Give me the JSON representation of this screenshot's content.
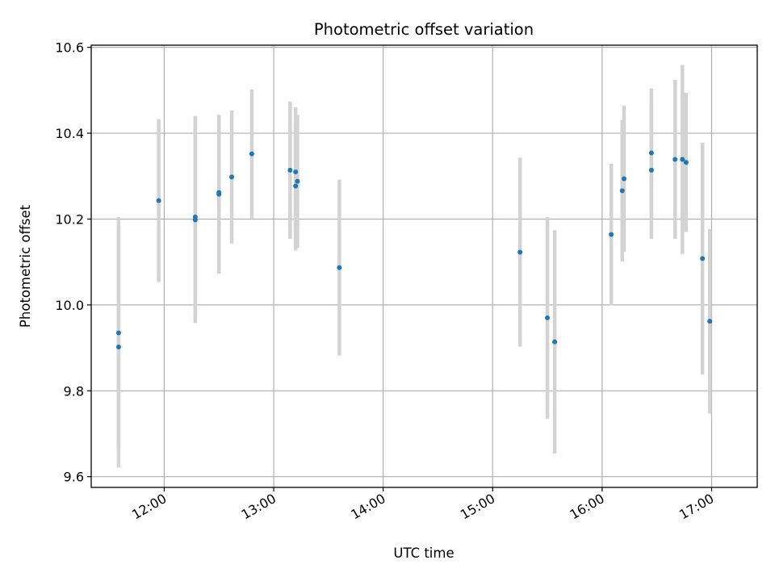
{
  "chart_data": {
    "type": "scatter",
    "title": "Photometric offset variation",
    "xlabel": "UTC time",
    "ylabel": "Photometric offset",
    "x_axis": "time",
    "xlim": [
      "11:20",
      "17:25"
    ],
    "ylim": [
      9.575,
      10.605
    ],
    "x_ticks": [
      "12:00",
      "13:00",
      "14:00",
      "15:00",
      "16:00",
      "17:00"
    ],
    "y_ticks": [
      "9.6",
      "9.8",
      "10.0",
      "10.2",
      "10.4",
      "10.6"
    ],
    "grid": true,
    "colors": {
      "point": "#1f77b4",
      "errorbar": "#d3d3d3",
      "grid": "#b0b0b0"
    },
    "points": [
      {
        "x": "11:35",
        "y": 9.935,
        "yerr": 0.27
      },
      {
        "x": "11:35",
        "y": 9.902,
        "yerr": 0.28
      },
      {
        "x": "11:57",
        "y": 10.243,
        "yerr": 0.19
      },
      {
        "x": "12:17",
        "y": 10.205,
        "yerr": 0.235
      },
      {
        "x": "12:17",
        "y": 10.198,
        "yerr": 0.24
      },
      {
        "x": "12:30",
        "y": 10.262,
        "yerr": 0.18
      },
      {
        "x": "12:30",
        "y": 10.258,
        "yerr": 0.185
      },
      {
        "x": "12:37",
        "y": 10.298,
        "yerr": 0.155
      },
      {
        "x": "12:48",
        "y": 10.352,
        "yerr": 0.15
      },
      {
        "x": "13:09",
        "y": 10.314,
        "yerr": 0.16
      },
      {
        "x": "13:12",
        "y": 10.31,
        "yerr": 0.15
      },
      {
        "x": "13:12",
        "y": 10.277,
        "yerr": 0.15
      },
      {
        "x": "13:13",
        "y": 10.288,
        "yerr": 0.155
      },
      {
        "x": "13:36",
        "y": 10.087,
        "yerr": 0.205
      },
      {
        "x": "15:15",
        "y": 10.123,
        "yerr": 0.22
      },
      {
        "x": "15:30",
        "y": 9.97,
        "yerr": 0.235
      },
      {
        "x": "15:34",
        "y": 9.914,
        "yerr": 0.26
      },
      {
        "x": "16:05",
        "y": 10.164,
        "yerr": 0.165
      },
      {
        "x": "16:11",
        "y": 10.266,
        "yerr": 0.165
      },
      {
        "x": "16:12",
        "y": 10.294,
        "yerr": 0.17
      },
      {
        "x": "16:27",
        "y": 10.354,
        "yerr": 0.15
      },
      {
        "x": "16:27",
        "y": 10.314,
        "yerr": 0.16
      },
      {
        "x": "16:40",
        "y": 10.339,
        "yerr": 0.185
      },
      {
        "x": "16:44",
        "y": 10.339,
        "yerr": 0.22
      },
      {
        "x": "16:46",
        "y": 10.332,
        "yerr": 0.162
      },
      {
        "x": "16:55",
        "y": 10.108,
        "yerr": 0.27
      },
      {
        "x": "16:59",
        "y": 9.962,
        "yerr": 0.215
      }
    ]
  }
}
